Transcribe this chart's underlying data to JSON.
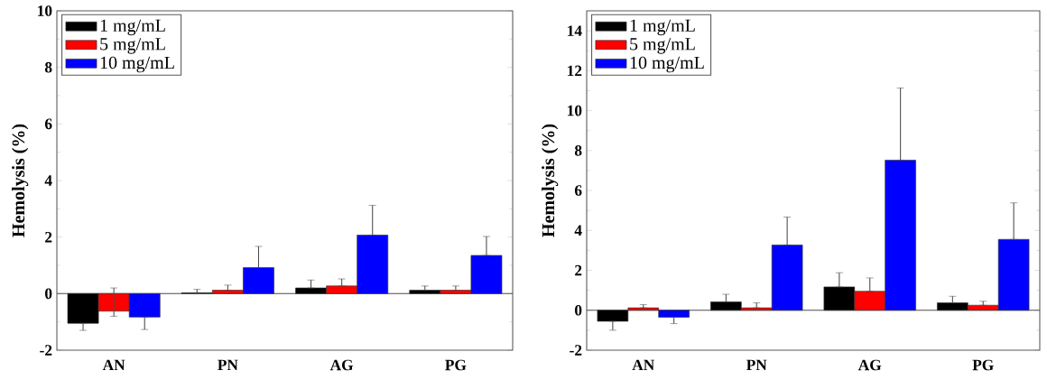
{
  "chart_data": [
    {
      "type": "bar",
      "ylabel": "Hemolysis (%)",
      "categories": [
        "AN",
        "PN",
        "AG",
        "PG"
      ],
      "ylim": [
        -2,
        10
      ],
      "yticks": [
        -2,
        0,
        2,
        4,
        6,
        8,
        10
      ],
      "legend": "top left",
      "series": [
        {
          "name": "1 mg/mL",
          "color": "#000000",
          "values": [
            -1.05,
            0.03,
            0.2,
            0.12
          ],
          "errors": [
            [
              -1.3,
              -1.05
            ],
            [
              0.03,
              0.15
            ],
            [
              0.2,
              0.48
            ],
            [
              0.12,
              0.27
            ]
          ]
        },
        {
          "name": "5 mg/mL",
          "color": "#ff0000",
          "values": [
            -0.62,
            0.12,
            0.27,
            0.12
          ],
          "errors": [
            [
              -0.8,
              0.2
            ],
            [
              0.12,
              0.3
            ],
            [
              0.27,
              0.52
            ],
            [
              0.12,
              0.27
            ]
          ]
        },
        {
          "name": "10 mg/mL",
          "color": "#0000ff",
          "values": [
            -0.83,
            0.92,
            2.07,
            1.35
          ],
          "errors": [
            [
              -1.27,
              -0.83
            ],
            [
              0.92,
              1.67
            ],
            [
              2.07,
              3.12
            ],
            [
              1.35,
              2.02
            ]
          ]
        }
      ]
    },
    {
      "type": "bar",
      "ylabel": "Hemolysis (%)",
      "categories": [
        "AN",
        "PN",
        "AG",
        "PG"
      ],
      "ylim": [
        -2,
        15
      ],
      "yticks": [
        -2,
        0,
        2,
        4,
        6,
        8,
        10,
        12,
        14
      ],
      "legend": "top left",
      "series": [
        {
          "name": "1 mg/mL",
          "color": "#000000",
          "values": [
            -0.55,
            0.42,
            1.17,
            0.37
          ],
          "errors": [
            [
              -1.0,
              -0.55
            ],
            [
              0.42,
              0.8
            ],
            [
              1.17,
              1.88
            ],
            [
              0.37,
              0.7
            ]
          ]
        },
        {
          "name": "5 mg/mL",
          "color": "#ff0000",
          "values": [
            0.12,
            0.12,
            0.95,
            0.25
          ],
          "errors": [
            [
              0.12,
              0.28
            ],
            [
              0.12,
              0.37
            ],
            [
              0.95,
              1.62
            ],
            [
              0.25,
              0.45
            ]
          ]
        },
        {
          "name": "10 mg/mL",
          "color": "#0000ff",
          "values": [
            -0.35,
            3.27,
            7.52,
            3.55
          ],
          "errors": [
            [
              -0.67,
              -0.35
            ],
            [
              3.27,
              4.67
            ],
            [
              7.52,
              11.13
            ],
            [
              3.55,
              5.38
            ]
          ]
        }
      ]
    }
  ]
}
